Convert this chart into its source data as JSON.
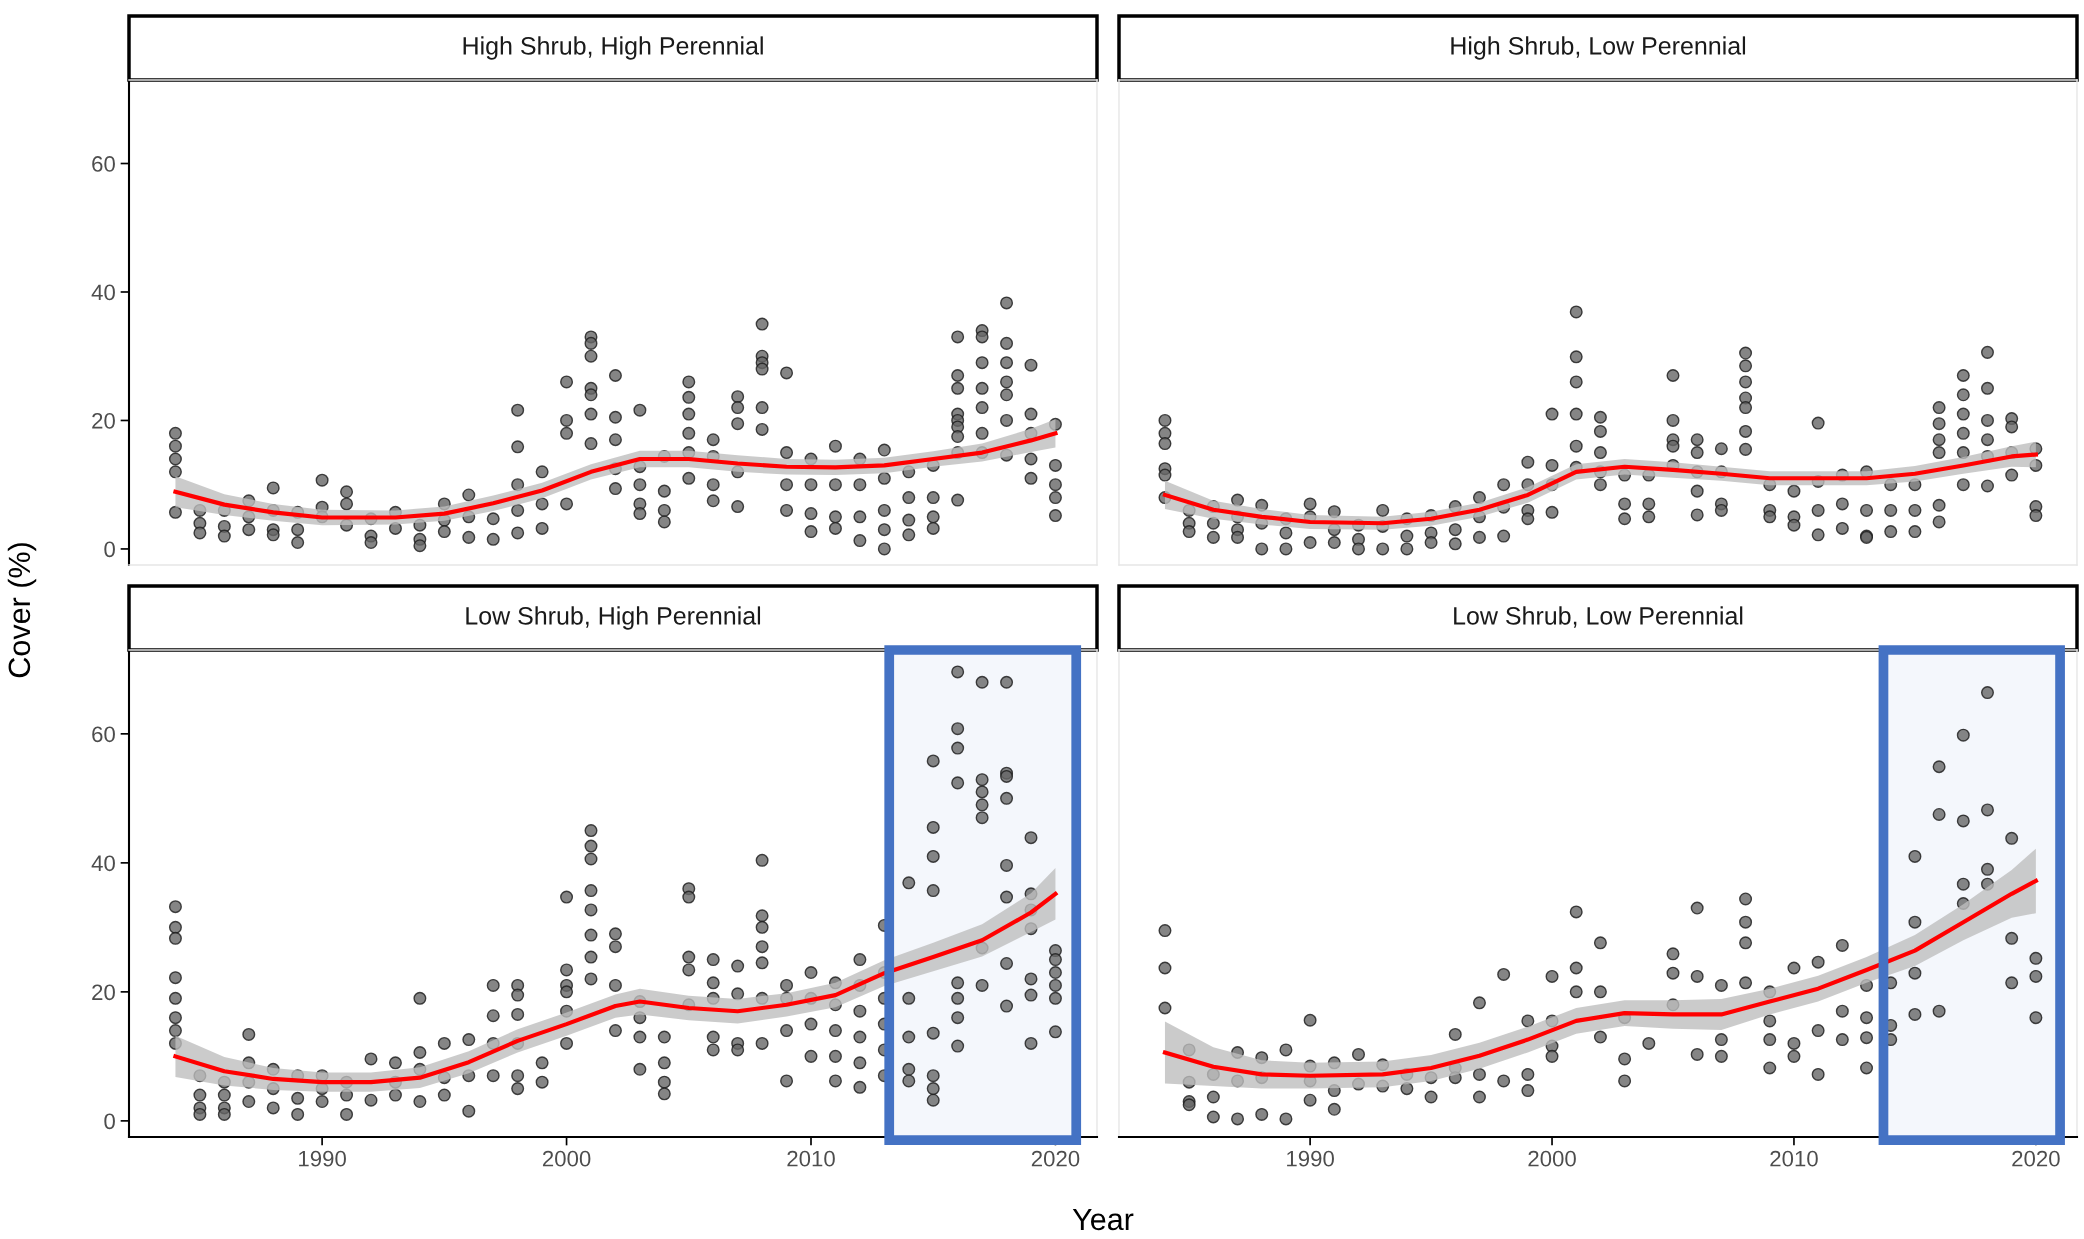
{
  "chart_data": [
    {
      "type": "scatter",
      "title": "High Shrub, High Perennial",
      "ylabel": "Cover (%)",
      "xlim": [
        1982.1,
        2021.7
      ],
      "ylim": [
        -2.5,
        73
      ],
      "xticks": [
        1990,
        2000,
        2010,
        2020
      ],
      "yticks": [
        0,
        20,
        40,
        60
      ],
      "tick_labels": "y",
      "grid": false,
      "series": [
        {
          "marker": "circle",
          "color": "#666666",
          "x": [
            1984,
            1984,
            1984,
            1984,
            1984,
            1985,
            1985,
            1985,
            1986,
            1986,
            1986,
            1987,
            1987,
            1987,
            1988,
            1988,
            1988,
            1988,
            1989,
            1989,
            1989,
            1990,
            1990,
            1990,
            1991,
            1991,
            1991,
            1992,
            1992,
            1992,
            1993,
            1993,
            1994,
            1994,
            1994,
            1995,
            1995,
            1995,
            1996,
            1996,
            1996,
            1997,
            1997,
            1998,
            1998,
            1998,
            1998,
            1998,
            1999,
            1999,
            1999,
            2000,
            2000,
            2000,
            2000,
            2001,
            2001,
            2001,
            2001,
            2001,
            2001,
            2001,
            2002,
            2002,
            2002,
            2002,
            2002,
            2003,
            2003,
            2003,
            2003,
            2003,
            2004,
            2004,
            2004,
            2004,
            2005,
            2005,
            2005,
            2005,
            2005,
            2005,
            2006,
            2006,
            2006,
            2006,
            2007,
            2007,
            2007,
            2007,
            2007,
            2008,
            2008,
            2008,
            2008,
            2008,
            2008,
            2009,
            2009,
            2009,
            2009,
            2010,
            2010,
            2010,
            2010,
            2011,
            2011,
            2011,
            2011,
            2012,
            2012,
            2012,
            2012,
            2013,
            2013,
            2013,
            2013,
            2013,
            2014,
            2014,
            2014,
            2014,
            2015,
            2015,
            2015,
            2015,
            2016,
            2016,
            2016,
            2016,
            2016,
            2016,
            2016,
            2016,
            2016,
            2017,
            2017,
            2017,
            2017,
            2017,
            2017,
            2017,
            2018,
            2018,
            2018,
            2018,
            2018,
            2018,
            2018,
            2019,
            2019,
            2019,
            2019,
            2019,
            2020,
            2020,
            2020,
            2020,
            2020
          ],
          "values": [
            18,
            16,
            14,
            12,
            5.7,
            6,
            4,
            2.5,
            6,
            3.5,
            2,
            7.5,
            5,
            3,
            9.5,
            6,
            3,
            2.2,
            5.7,
            3,
            1,
            10.7,
            6.5,
            5,
            8.9,
            7,
            3.7,
            4.7,
            2,
            1,
            5.7,
            3.2,
            3.7,
            1.5,
            0.5,
            7,
            4.5,
            2.7,
            8.4,
            5,
            1.8,
            4.7,
            1.5,
            21.6,
            15.9,
            10,
            6,
            2.5,
            12,
            7,
            3.2,
            26,
            20,
            18,
            7,
            33,
            32,
            30,
            25,
            24,
            21,
            16.4,
            27,
            20.5,
            17,
            12.5,
            9.4,
            21.6,
            12.8,
            10,
            7,
            5.5,
            14.4,
            9,
            6,
            4.2,
            26,
            23.6,
            21,
            18,
            15,
            11,
            17,
            14.4,
            10,
            7.5,
            23.7,
            22,
            19.5,
            12,
            6.6,
            35,
            30,
            29,
            28,
            22,
            18.6,
            27.4,
            15,
            10,
            6,
            14,
            10,
            5.5,
            2.7,
            16,
            10,
            5,
            3.2,
            14,
            10,
            5,
            1.3,
            15.4,
            11,
            6,
            3,
            0,
            12,
            8,
            4.5,
            2.2,
            13,
            8,
            5,
            3.2,
            33,
            27,
            25,
            21,
            20,
            19,
            17.5,
            15,
            7.6,
            34,
            33,
            29,
            25,
            22,
            18,
            15,
            38.3,
            32,
            29,
            26,
            24,
            20,
            14.6,
            28.6,
            21,
            18,
            14,
            11,
            19.4,
            13,
            10,
            8,
            5.2
          ]
        },
        {
          "type": "line",
          "color": "#ff0000",
          "x": [
            1984,
            1986,
            1988,
            1990,
            1993,
            1995,
            1997,
            1999,
            2001,
            2003,
            2005,
            2007,
            2009,
            2011,
            2013,
            2015,
            2017,
            2019,
            2020
          ],
          "values": [
            8.9,
            6.9,
            5.7,
            4.9,
            4.9,
            5.5,
            7.1,
            9.1,
            12,
            14,
            14,
            13.3,
            12.8,
            12.7,
            13,
            14,
            15,
            16.9,
            18
          ],
          "lower": [
            6.5,
            5.3,
            4.4,
            3.7,
            3.8,
            4.4,
            5.9,
            7.9,
            10.8,
            12.7,
            12.7,
            12,
            11.6,
            11.5,
            11.8,
            12.8,
            13.6,
            15.1,
            15.8
          ],
          "upper": [
            11.3,
            8.5,
            7,
            6.1,
            6,
            6.6,
            8.3,
            10.3,
            13.2,
            15.3,
            15.3,
            14.6,
            14,
            13.9,
            14.2,
            15.2,
            16.4,
            18.7,
            20.2
          ]
        }
      ]
    },
    {
      "type": "scatter",
      "title": "High Shrub, Low Perennial",
      "xlim": [
        1982.1,
        2021.7
      ],
      "ylim": [
        -2.5,
        73
      ],
      "xticks": [
        1990,
        2000,
        2010,
        2020
      ],
      "yticks": [
        0,
        20,
        40,
        60
      ],
      "tick_labels": false,
      "grid": false,
      "series": [
        {
          "marker": "circle",
          "color": "#666666",
          "x": [
            1984,
            1984,
            1984,
            1984,
            1984,
            1984,
            1985,
            1985,
            1985,
            1986,
            1986,
            1986,
            1987,
            1987,
            1987,
            1987,
            1988,
            1988,
            1988,
            1989,
            1989,
            1989,
            1990,
            1990,
            1990,
            1991,
            1991,
            1991,
            1992,
            1992,
            1992,
            1993,
            1993,
            1993,
            1994,
            1994,
            1994,
            1995,
            1995,
            1995,
            1996,
            1996,
            1996,
            1997,
            1997,
            1997,
            1998,
            1998,
            1998,
            1999,
            1999,
            1999,
            1999,
            2000,
            2000,
            2000,
            2000,
            2001,
            2001,
            2001,
            2001,
            2001,
            2001,
            2002,
            2002,
            2002,
            2002,
            2002,
            2003,
            2003,
            2003,
            2004,
            2004,
            2004,
            2005,
            2005,
            2005,
            2005,
            2005,
            2006,
            2006,
            2006,
            2006,
            2006,
            2007,
            2007,
            2007,
            2007,
            2008,
            2008,
            2008,
            2008,
            2008,
            2008,
            2008,
            2009,
            2009,
            2009,
            2010,
            2010,
            2010,
            2011,
            2011,
            2011,
            2011,
            2012,
            2012,
            2012,
            2013,
            2013,
            2013,
            2013,
            2014,
            2014,
            2014,
            2015,
            2015,
            2015,
            2016,
            2016,
            2016,
            2016,
            2016,
            2016,
            2017,
            2017,
            2017,
            2017,
            2017,
            2017,
            2018,
            2018,
            2018,
            2018,
            2018,
            2018,
            2019,
            2019,
            2019,
            2019,
            2020,
            2020,
            2020,
            2020
          ],
          "values": [
            20,
            18,
            16.4,
            12.5,
            11.5,
            8,
            6,
            4,
            2.7,
            6.6,
            4,
            1.8,
            7.6,
            5,
            3,
            1.8,
            6.8,
            4,
            0,
            4.7,
            2.5,
            0,
            7,
            5,
            1,
            5.8,
            3,
            1,
            3.7,
            1.5,
            0,
            6,
            3.5,
            0,
            4.7,
            2,
            0,
            5.2,
            2.5,
            1,
            6.6,
            3,
            0.8,
            8,
            5,
            1.8,
            10,
            6.5,
            2,
            13.5,
            10,
            6,
            4.7,
            21,
            13,
            10,
            5.7,
            36.9,
            29.9,
            26,
            21,
            16,
            12.7,
            20.5,
            18.3,
            15,
            12,
            10,
            11.5,
            7,
            4.7,
            11.5,
            7,
            5,
            27,
            20,
            17,
            16,
            13,
            17,
            15,
            12,
            9,
            5.3,
            15.6,
            12,
            7,
            6,
            30.5,
            28.5,
            26,
            23.5,
            22,
            18.3,
            15.5,
            10,
            6,
            5,
            9,
            5,
            3.7,
            19.6,
            10.5,
            6,
            2.2,
            11.5,
            7,
            3.2,
            12,
            6,
            2,
            1.8,
            10,
            6,
            2.7,
            10,
            6,
            2.7,
            22,
            19.5,
            17,
            15,
            6.8,
            4.2,
            27,
            24,
            21,
            18,
            15,
            10,
            30.6,
            25,
            20,
            17,
            14.4,
            9.8,
            20.3,
            19,
            15,
            11.5,
            15.6,
            13,
            6.6,
            5.2
          ]
        },
        {
          "type": "line",
          "color": "#ff0000",
          "x": [
            1984,
            1986,
            1988,
            1990,
            1993,
            1995,
            1997,
            1999,
            2001,
            2003,
            2005,
            2007,
            2009,
            2011,
            2013,
            2015,
            2017,
            2019,
            2020
          ],
          "values": [
            8.4,
            6.1,
            5,
            4.2,
            4,
            4.7,
            6.1,
            8.4,
            12,
            12.8,
            12.3,
            11.7,
            11,
            11,
            11,
            11.7,
            13,
            14.4,
            14.7
          ],
          "lower": [
            6.2,
            4.7,
            3.8,
            3.1,
            3,
            3.6,
            5,
            7.2,
            10.8,
            11.6,
            11.1,
            10.6,
            9.9,
            9.9,
            9.9,
            10.5,
            11.7,
            12.8,
            12.7
          ],
          "upper": [
            10.6,
            7.5,
            6.2,
            5.3,
            5,
            5.8,
            7.2,
            9.6,
            13.2,
            14,
            13.5,
            12.8,
            12.1,
            12.1,
            12.1,
            12.9,
            14.3,
            16,
            16.7
          ]
        }
      ]
    },
    {
      "type": "scatter",
      "title": "Low Shrub, High Perennial",
      "xlabel": "Year",
      "xlim": [
        1982.1,
        2021.7
      ],
      "ylim": [
        -2.5,
        73
      ],
      "xticks": [
        1990,
        2000,
        2010,
        2020
      ],
      "yticks": [
        0,
        20,
        40,
        60
      ],
      "grid": false,
      "bands": [
        {
          "axis": "x",
          "from": 2013.2,
          "to": 2020.85,
          "color": "#4472c4"
        }
      ],
      "series": [
        {
          "marker": "circle",
          "color": "#666666",
          "x": [
            1984,
            1984,
            1984,
            1984,
            1984,
            1984,
            1984,
            1984,
            1985,
            1985,
            1985,
            1985,
            1986,
            1986,
            1986,
            1986,
            1987,
            1987,
            1987,
            1987,
            1988,
            1988,
            1988,
            1989,
            1989,
            1989,
            1990,
            1990,
            1990,
            1991,
            1991,
            1991,
            1992,
            1992,
            1993,
            1993,
            1993,
            1994,
            1994,
            1994,
            1994,
            1995,
            1995,
            1995,
            1996,
            1996,
            1996,
            1997,
            1997,
            1997,
            1997,
            1998,
            1998,
            1998,
            1998,
            1998,
            1998,
            1999,
            1999,
            2000,
            2000,
            2000,
            2000,
            2000,
            2000,
            2001,
            2001,
            2001,
            2001,
            2001,
            2001,
            2001,
            2001,
            2002,
            2002,
            2002,
            2002,
            2003,
            2003,
            2003,
            2003,
            2004,
            2004,
            2004,
            2004,
            2005,
            2005,
            2005,
            2005,
            2005,
            2006,
            2006,
            2006,
            2006,
            2006,
            2007,
            2007,
            2007,
            2007,
            2008,
            2008,
            2008,
            2008,
            2008,
            2008,
            2008,
            2009,
            2009,
            2009,
            2009,
            2010,
            2010,
            2010,
            2010,
            2011,
            2011,
            2011,
            2011,
            2011,
            2012,
            2012,
            2012,
            2012,
            2012,
            2012,
            2013,
            2013,
            2013,
            2013,
            2013,
            2013,
            2014,
            2014,
            2014,
            2014,
            2014,
            2015,
            2015,
            2015,
            2015,
            2015,
            2015,
            2015,
            2015,
            2016,
            2016,
            2016,
            2016,
            2016,
            2016,
            2016,
            2016,
            2017,
            2017,
            2017,
            2017,
            2017,
            2017,
            2017,
            2018,
            2018,
            2018,
            2018,
            2018,
            2018,
            2018,
            2018,
            2019,
            2019,
            2019,
            2019,
            2019,
            2019,
            2019,
            2020,
            2020,
            2020,
            2020,
            2020,
            2020
          ],
          "values": [
            33.2,
            30,
            28.3,
            22.2,
            19,
            16,
            14,
            12,
            7,
            4,
            2,
            1,
            6,
            4,
            2,
            1,
            13.4,
            9,
            6,
            3,
            8,
            5,
            2,
            7,
            3.5,
            1,
            7,
            5,
            3,
            6,
            4,
            1,
            9.6,
            3.2,
            9,
            6,
            4,
            19,
            10.6,
            8,
            3,
            12,
            6.7,
            4,
            12.6,
            7,
            1.5,
            21,
            16.3,
            12,
            7,
            21,
            19.5,
            16.5,
            12,
            7,
            5,
            9,
            6,
            34.7,
            23.4,
            21,
            20,
            17,
            12,
            45,
            42.6,
            40.6,
            35.7,
            32.7,
            28.8,
            25.4,
            22,
            29,
            27,
            21,
            14,
            18.5,
            16,
            13,
            8,
            13,
            9,
            6,
            4.2,
            36,
            34.7,
            25.4,
            23.4,
            18,
            25,
            21.4,
            19,
            13,
            11,
            24,
            19.7,
            12,
            11,
            40.4,
            31.8,
            30,
            27,
            24.5,
            19,
            12,
            21,
            19,
            14,
            6.2,
            23,
            19,
            15,
            10,
            21.4,
            18,
            14,
            10,
            6.2,
            25,
            21,
            17,
            13,
            9,
            5.2,
            30.3,
            23,
            19,
            15,
            11,
            7,
            36.9,
            19,
            13,
            8,
            6.2,
            55.8,
            45.5,
            41,
            35.7,
            13.6,
            7,
            5,
            3.2,
            69.6,
            60.8,
            57.8,
            52.4,
            21.4,
            19,
            16,
            11.6,
            68,
            52.9,
            51,
            49,
            47,
            26.8,
            21,
            68,
            53.9,
            53.4,
            50,
            39.6,
            34.7,
            24.4,
            17.8,
            43.9,
            35.2,
            32.7,
            29.8,
            22,
            19.5,
            12,
            26.4,
            25,
            23,
            21,
            19,
            13.8
          ]
        },
        {
          "type": "line",
          "color": "#ff0000",
          "x": [
            1984,
            1986,
            1988,
            1990,
            1992,
            1994,
            1996,
            1998,
            2000,
            2002,
            2003,
            2005,
            2007,
            2009,
            2011,
            2013,
            2015,
            2017,
            2019,
            2020
          ],
          "values": [
            10,
            7.7,
            6.5,
            6,
            6,
            6.7,
            9.1,
            12.4,
            15,
            17.8,
            18.5,
            17.5,
            17,
            18,
            19.5,
            22.9,
            25.4,
            28,
            32.3,
            35.2
          ],
          "lower": [
            6.8,
            5.5,
            4.8,
            4.5,
            4.5,
            5.1,
            7.4,
            10.6,
            13.2,
            16,
            16.5,
            15.6,
            15.1,
            16.2,
            17.6,
            20.9,
            23.2,
            25.5,
            29.3,
            31.2
          ],
          "upper": [
            13.2,
            9.9,
            8.2,
            7.5,
            7.5,
            8.3,
            10.8,
            14.2,
            16.8,
            19.6,
            20.5,
            19.4,
            18.9,
            19.8,
            21.4,
            24.9,
            27.6,
            30.5,
            35.3,
            39.2
          ]
        }
      ]
    },
    {
      "type": "scatter",
      "title": "Low Shrub, Low Perennial",
      "xlim": [
        1982.1,
        2021.7
      ],
      "ylim": [
        -2.5,
        73
      ],
      "xticks": [
        1990,
        2000,
        2010,
        2020
      ],
      "yticks": [
        0,
        20,
        40,
        60
      ],
      "tick_labels": "x",
      "grid": false,
      "bands": [
        {
          "axis": "x",
          "from": 2013.7,
          "to": 2021.0,
          "color": "#4472c4"
        }
      ],
      "series": [
        {
          "marker": "circle",
          "color": "#666666",
          "x": [
            1984,
            1984,
            1984,
            1985,
            1985,
            1985,
            1985,
            1986,
            1986,
            1986,
            1987,
            1987,
            1987,
            1988,
            1988,
            1988,
            1989,
            1989,
            1990,
            1990,
            1990,
            1990,
            1991,
            1991,
            1991,
            1992,
            1992,
            1993,
            1993,
            1994,
            1994,
            1995,
            1995,
            1996,
            1996,
            1996,
            1997,
            1997,
            1997,
            1998,
            1998,
            1999,
            1999,
            1999,
            2000,
            2000,
            2000,
            2000,
            2001,
            2001,
            2001,
            2002,
            2002,
            2002,
            2003,
            2003,
            2003,
            2004,
            2005,
            2005,
            2005,
            2006,
            2006,
            2006,
            2007,
            2007,
            2007,
            2008,
            2008,
            2008,
            2008,
            2009,
            2009,
            2009,
            2009,
            2010,
            2010,
            2010,
            2011,
            2011,
            2011,
            2012,
            2012,
            2012,
            2013,
            2013,
            2013,
            2013,
            2014,
            2014,
            2014,
            2015,
            2015,
            2015,
            2015,
            2016,
            2016,
            2016,
            2017,
            2017,
            2017,
            2017,
            2018,
            2018,
            2018,
            2018,
            2019,
            2019,
            2019,
            2020,
            2020,
            2020
          ],
          "values": [
            29.5,
            23.7,
            17.5,
            11,
            6,
            3,
            2.5,
            7.2,
            3.7,
            0.6,
            10.6,
            6.2,
            0.3,
            9.8,
            6.7,
            1,
            11,
            0.3,
            15.6,
            8.5,
            6.2,
            3.2,
            9,
            4.7,
            1.8,
            10.3,
            5.7,
            8.7,
            5.4,
            7.2,
            5,
            6.7,
            3.7,
            13.4,
            8.2,
            6.7,
            18.3,
            7.2,
            3.7,
            22.7,
            6.2,
            15.5,
            7.2,
            4.7,
            22.4,
            15.5,
            11.6,
            10,
            32.4,
            23.7,
            20,
            27.6,
            20,
            13,
            16,
            9.6,
            6.2,
            12,
            25.9,
            22.9,
            18,
            33,
            22.4,
            10.3,
            21,
            12.6,
            10,
            34.4,
            30.8,
            27.6,
            21.4,
            20,
            15.5,
            12.6,
            8.2,
            23.7,
            12,
            10,
            24.6,
            14,
            7.2,
            27.2,
            17,
            12.6,
            21,
            16,
            12.9,
            8.2,
            21.4,
            14.8,
            12.6,
            41,
            30.8,
            22.9,
            16.5,
            54.9,
            47.5,
            17,
            59.8,
            46.5,
            36.7,
            33.7,
            66.4,
            48.2,
            39,
            36.7,
            43.8,
            28.3,
            21.4,
            25.2,
            22.4,
            16
          ]
        },
        {
          "type": "line",
          "color": "#ff0000",
          "x": [
            1984,
            1986,
            1988,
            1990,
            1993,
            1995,
            1997,
            1999,
            2001,
            2003,
            2005,
            2007,
            2009,
            2011,
            2013,
            2015,
            2017,
            2019,
            2020
          ],
          "values": [
            10.6,
            8.4,
            7.2,
            7,
            7.2,
            8.2,
            10.1,
            12.6,
            15.5,
            16.7,
            16.5,
            16.5,
            18.5,
            20.5,
            23.4,
            26.4,
            30.8,
            35.2,
            37.2
          ],
          "lower": [
            5.8,
            5.4,
            5,
            5,
            5.2,
            6.2,
            8.1,
            10.6,
            13.5,
            14.7,
            14.3,
            14.1,
            16.5,
            18.5,
            21.4,
            24,
            28,
            31.5,
            32.2
          ],
          "upper": [
            15.4,
            11.4,
            9.4,
            9,
            9.2,
            10.2,
            12.1,
            14.6,
            17.5,
            18.7,
            18.7,
            18.9,
            20.5,
            22.5,
            25.4,
            28.8,
            33.6,
            38.9,
            42.2
          ]
        }
      ]
    }
  ]
}
